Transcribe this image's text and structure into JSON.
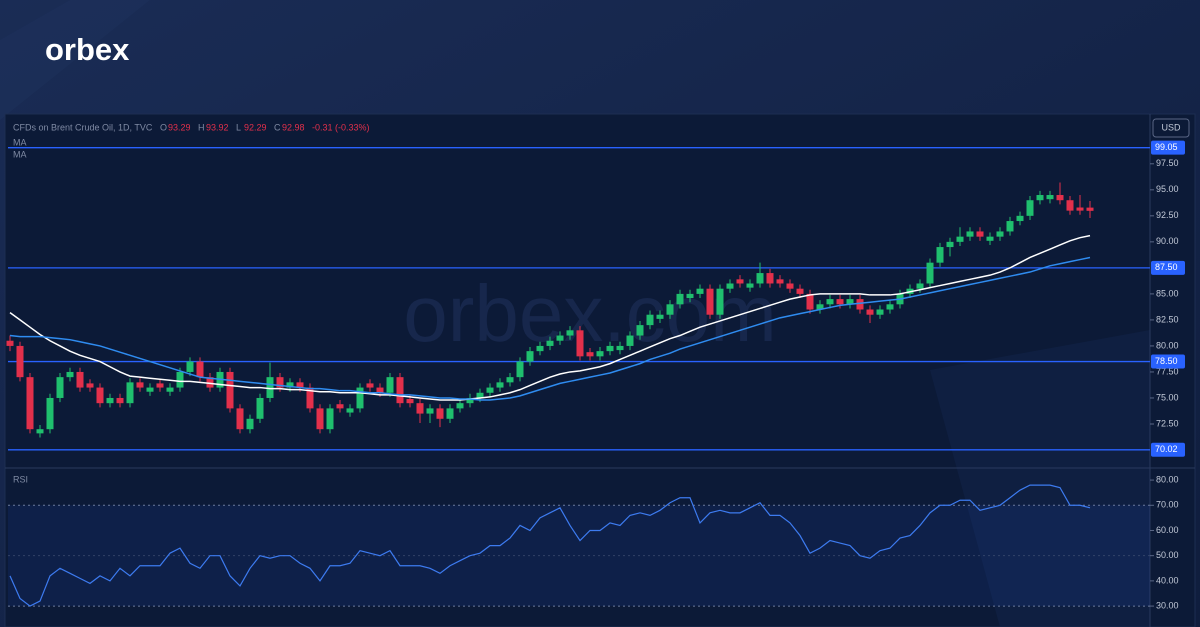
{
  "logo": "orbex",
  "watermark": "orbex.com",
  "chart_data": {
    "type": "candlestick",
    "title": "CFDs on Brent Crude Oil, 1D, TVC",
    "ohlc_prefixes": [
      "O",
      "H",
      "L",
      "C"
    ],
    "change_label": "-0.31 (-0.33%)",
    "currency": "USD",
    "up_color": "#1fbf6e",
    "down_color": "#e3304b",
    "open": [
      80.5,
      80,
      77,
      71.6,
      72,
      75,
      77,
      77.5,
      76.4,
      76,
      74.5,
      75,
      74.5,
      76.5,
      75.6,
      76.4,
      75.6,
      76,
      77.5,
      78.5,
      77,
      76,
      77.5,
      74,
      72,
      73,
      75,
      77,
      76,
      76.5,
      76,
      74,
      72,
      74.4,
      73.6,
      74,
      76.4,
      76,
      75.5,
      77,
      74.9,
      74.5,
      73.5,
      74,
      73,
      74,
      74.5,
      75,
      75.5,
      76,
      76.5,
      77,
      78.5,
      79.5,
      80,
      80.5,
      81,
      81.5,
      79.4,
      79,
      79.5,
      79.6,
      80,
      81,
      82,
      82.6,
      83,
      84,
      84.6,
      85,
      85.5,
      83,
      85.5,
      86.4,
      85.6,
      86,
      87,
      86.4,
      86,
      85.5,
      85,
      83.5,
      84,
      84.5,
      84,
      84.5,
      83.5,
      83,
      83.5,
      84,
      85,
      85.5,
      86,
      88,
      89.5,
      90,
      90.5,
      91,
      90.1,
      90.5,
      91,
      92,
      92.5,
      94,
      94.1,
      94.5,
      94,
      93.3,
      93.29
    ],
    "high": [
      81,
      80.4,
      77.4,
      72.4,
      75.4,
      77.4,
      77.9,
      77.9,
      76.8,
      76.4,
      75.4,
      75.4,
      76.9,
      76.9,
      76.4,
      76.8,
      76.4,
      77.9,
      78.9,
      78.9,
      77.4,
      77.9,
      77.9,
      74.4,
      73.4,
      75.4,
      78.4,
      77.4,
      76.9,
      76.9,
      76.4,
      74.4,
      74.4,
      74.8,
      74.4,
      76.4,
      76.8,
      76.4,
      77.4,
      77.4,
      75.3,
      74.9,
      74.4,
      74.4,
      74.4,
      74.9,
      75.4,
      75.9,
      76.4,
      76.9,
      77.4,
      78.9,
      79.9,
      80.4,
      80.9,
      81.4,
      81.9,
      81.9,
      79.8,
      79.9,
      80.4,
      80.4,
      81.4,
      82.4,
      83.4,
      83.4,
      84.4,
      85.4,
      85.4,
      85.9,
      85.9,
      85.9,
      86.4,
      86.8,
      86.4,
      88,
      87.4,
      86.8,
      86.4,
      85.9,
      85.4,
      84.4,
      84.9,
      84.9,
      84.9,
      84.9,
      83.9,
      83.9,
      84.4,
      85.4,
      85.9,
      86.4,
      88.4,
      89.9,
      90.4,
      91.4,
      91.4,
      91.4,
      90.9,
      91.4,
      92.4,
      92.9,
      94.4,
      94.9,
      94.9,
      95.7,
      94.4,
      94.5,
      93.92
    ],
    "low": [
      79.5,
      76.6,
      71.6,
      71.2,
      71.6,
      74.6,
      76.6,
      75.6,
      75.6,
      74.1,
      74.1,
      74.1,
      74.1,
      75.6,
      75.2,
      75.6,
      75.2,
      75.6,
      77.1,
      76.6,
      75.6,
      75.6,
      73.6,
      71.6,
      71.6,
      72.6,
      74.6,
      75.6,
      75.6,
      75.6,
      73.6,
      71.6,
      71.6,
      73.6,
      73.2,
      73.6,
      75.6,
      75.1,
      75.1,
      74.1,
      74.1,
      72.6,
      72.6,
      72.2,
      72.6,
      73.6,
      74.1,
      74.6,
      75.1,
      75.6,
      76.1,
      76.6,
      78.1,
      79.1,
      79.6,
      80.1,
      80.6,
      78.6,
      78.6,
      78.6,
      79.1,
      79.2,
      79.6,
      80.6,
      81.6,
      82.2,
      82.6,
      83.6,
      84.2,
      84.6,
      82.6,
      82.6,
      85.1,
      85.6,
      85.2,
      85.6,
      85.6,
      85.6,
      85.1,
      84.6,
      83.1,
      83.1,
      83.6,
      83.6,
      83.6,
      83.1,
      82.2,
      82.6,
      83.1,
      83.6,
      84.6,
      85.1,
      85.6,
      87.6,
      88.6,
      89.6,
      90.1,
      90.1,
      89.7,
      90.1,
      90.6,
      91.6,
      92.1,
      93.6,
      93.7,
      93.6,
      92.6,
      92.6,
      92.29
    ],
    "close": [
      80,
      77,
      72,
      72,
      75,
      77,
      77.5,
      76,
      76,
      74.5,
      75,
      74.5,
      76.5,
      76,
      76,
      76,
      76,
      77.5,
      78.5,
      77,
      76,
      77.5,
      74,
      72,
      73,
      75,
      77,
      76,
      76.5,
      76,
      74,
      72,
      74,
      74,
      74,
      76,
      76,
      75.5,
      77,
      74.5,
      74.5,
      73.5,
      74,
      73,
      74,
      74.5,
      75,
      75.5,
      76,
      76.5,
      77,
      78.5,
      79.5,
      80,
      80.5,
      81,
      81.5,
      79,
      79,
      79.5,
      80,
      80,
      81,
      82,
      83,
      83,
      84,
      85,
      85,
      85.5,
      83,
      85.5,
      86,
      86,
      86,
      87,
      86,
      86,
      85.5,
      85,
      83.5,
      84,
      84.5,
      84,
      84.5,
      83.5,
      83,
      83.5,
      84,
      85,
      85.5,
      86,
      88,
      89.5,
      90,
      90.5,
      91,
      90.5,
      90.5,
      91,
      92,
      92.5,
      94,
      94.5,
      94.5,
      94,
      93,
      93,
      92.98
    ],
    "series": [
      {
        "name": "MA",
        "color": "#ffffff",
        "values": [
          83.2,
          82.5,
          81.8,
          81.1,
          80.5,
          80,
          79.5,
          79.1,
          78.8,
          78.5,
          78,
          77.5,
          77.1,
          77,
          76.9,
          76.8,
          76.7,
          76.6,
          76.6,
          76.5,
          76.4,
          76.3,
          76.2,
          76.1,
          76,
          76,
          75.9,
          75.9,
          75.8,
          75.8,
          75.7,
          75.6,
          75.6,
          75.5,
          75.5,
          75.5,
          75.4,
          75.3,
          75.3,
          75.2,
          75.1,
          75,
          74.9,
          74.8,
          74.8,
          74.8,
          74.9,
          75,
          75.1,
          75.3,
          75.5,
          75.8,
          76.2,
          76.6,
          77,
          77.3,
          77.5,
          77.6,
          77.8,
          78,
          78.3,
          78.7,
          79.1,
          79.5,
          79.9,
          80.3,
          80.7,
          81,
          81.4,
          81.8,
          82.1,
          82.4,
          82.7,
          83,
          83.3,
          83.6,
          83.9,
          84.2,
          84.5,
          84.7,
          84.9,
          85,
          85,
          85,
          85,
          85,
          84.9,
          84.9,
          84.9,
          85,
          85.2,
          85.4,
          85.6,
          85.8,
          86,
          86.2,
          86.4,
          86.6,
          86.8,
          87.1,
          87.5,
          88,
          88.5,
          88.9,
          89.3,
          89.7,
          90.1,
          90.4,
          90.6
        ]
      },
      {
        "name": "MA",
        "color": "#2f8cf0",
        "values": [
          81,
          80.9,
          80.9,
          80.9,
          80.8,
          80.7,
          80.6,
          80.4,
          80.2,
          80,
          79.7,
          79.4,
          79.1,
          78.8,
          78.5,
          78.2,
          77.9,
          77.6,
          77.3,
          77,
          76.9,
          76.8,
          76.7,
          76.6,
          76.5,
          76.4,
          76.3,
          76.2,
          76.1,
          76,
          75.9,
          75.9,
          75.8,
          75.7,
          75.7,
          75.6,
          75.5,
          75.5,
          75.4,
          75.3,
          75.3,
          75.2,
          75.1,
          75,
          75,
          74.9,
          74.9,
          74.8,
          74.8,
          74.9,
          75,
          75.2,
          75.5,
          75.8,
          76.1,
          76.4,
          76.6,
          76.8,
          77,
          77.2,
          77.4,
          77.7,
          78,
          78.3,
          78.7,
          79,
          79.3,
          79.7,
          80,
          80.3,
          80.6,
          80.9,
          81.2,
          81.5,
          81.8,
          82.1,
          82.4,
          82.7,
          82.9,
          83.1,
          83.3,
          83.5,
          83.7,
          83.9,
          84,
          84.1,
          84.2,
          84.3,
          84.4,
          84.5,
          84.7,
          84.9,
          85.1,
          85.3,
          85.5,
          85.7,
          85.9,
          86.1,
          86.3,
          86.5,
          86.7,
          86.9,
          87.1,
          87.4,
          87.7,
          87.9,
          88.1,
          88.3,
          88.5
        ]
      }
    ],
    "ylim": [
      68.56,
      101.9
    ],
    "yticks": [
      {
        "value": 72.5,
        "label": "72.50"
      },
      {
        "value": 75,
        "label": "75.00"
      },
      {
        "value": 77.5,
        "label": "77.50"
      },
      {
        "value": 80,
        "label": "80.00"
      },
      {
        "value": 82.5,
        "label": "82.50"
      },
      {
        "value": 85,
        "label": "85.00"
      },
      {
        "value": 90,
        "label": "90.00"
      },
      {
        "value": 92.5,
        "label": "92.50"
      },
      {
        "value": 95,
        "label": "95.00"
      },
      {
        "value": 97.5,
        "label": "97.50"
      }
    ],
    "levels": [
      99.05,
      {
        "value": 87.5,
        "label": "87.50"
      },
      {
        "value": 78.5,
        "label": "78.50"
      },
      70.02
    ],
    "level_color": "#2962ff",
    "rsi": {
      "type": "line",
      "name": "RSI",
      "color": "#3d7bf0",
      "values": [
        42,
        33,
        30,
        32,
        42,
        45,
        43,
        41,
        39,
        42,
        40,
        45,
        42,
        46,
        46,
        46,
        51,
        53,
        47,
        45,
        50,
        50,
        42,
        38,
        45,
        50,
        49,
        50,
        50,
        47,
        45,
        40,
        46,
        46,
        47,
        52,
        51,
        50,
        52,
        46,
        46,
        46,
        45,
        43,
        46,
        48,
        50,
        51,
        54,
        54,
        57,
        62,
        60,
        65,
        67,
        69,
        62,
        56,
        60,
        60,
        63,
        62,
        66,
        67,
        66,
        68,
        71,
        73,
        73,
        63,
        67,
        68,
        67,
        67,
        69,
        71,
        66,
        66,
        63,
        58,
        51,
        53,
        56,
        55,
        54,
        50,
        49,
        52,
        53,
        57,
        58,
        62,
        67,
        70,
        70,
        72,
        72,
        68,
        69,
        70,
        73,
        76,
        78,
        78,
        78,
        77,
        70,
        70,
        69
      ],
      "ylim": [
        21.7,
        84
      ],
      "yticks": [
        {
          "value": 30,
          "label": "30.00"
        },
        {
          "value": 40,
          "label": "40.00"
        },
        {
          "value": 50,
          "label": "50.00"
        },
        {
          "value": 60,
          "label": "60.00"
        },
        {
          "value": 70,
          "label": "70.00"
        },
        {
          "value": 80,
          "label": "80.00"
        }
      ],
      "band": [
        30,
        70
      ],
      "midline": 50
    }
  }
}
